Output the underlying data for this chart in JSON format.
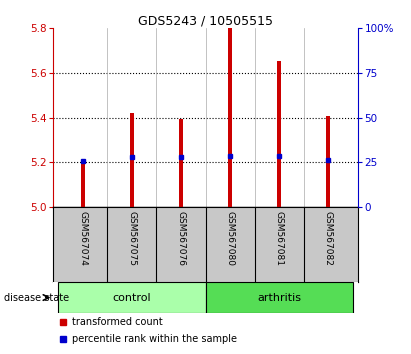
{
  "title": "GDS5243 / 10505515",
  "samples": [
    "GSM567074",
    "GSM567075",
    "GSM567076",
    "GSM567080",
    "GSM567081",
    "GSM567082"
  ],
  "bar_tops": [
    5.21,
    5.42,
    5.395,
    5.8,
    5.655,
    5.41
  ],
  "bar_base": 5.0,
  "blue_markers": [
    5.205,
    5.225,
    5.223,
    5.228,
    5.228,
    5.212
  ],
  "ylim_left": [
    5.0,
    5.8
  ],
  "ylim_right": [
    0,
    100
  ],
  "yticks_left": [
    5.0,
    5.2,
    5.4,
    5.6,
    5.8
  ],
  "yticks_right": [
    0,
    25,
    50,
    75,
    100
  ],
  "ytick_labels_right": [
    "0",
    "25",
    "50",
    "75",
    "100%"
  ],
  "groups": [
    {
      "label": "control",
      "indices": [
        0,
        1,
        2
      ],
      "color": "#aaffaa"
    },
    {
      "label": "arthritis",
      "indices": [
        3,
        4,
        5
      ],
      "color": "#55dd55"
    }
  ],
  "bar_color": "#cc0000",
  "marker_color": "#0000cc",
  "background_plot": "#ffffff",
  "background_sample": "#c8c8c8",
  "left_axis_color": "#cc0000",
  "right_axis_color": "#0000cc",
  "legend_items": [
    {
      "color": "#cc0000",
      "label": "transformed count"
    },
    {
      "color": "#0000cc",
      "label": "percentile rank within the sample"
    }
  ]
}
